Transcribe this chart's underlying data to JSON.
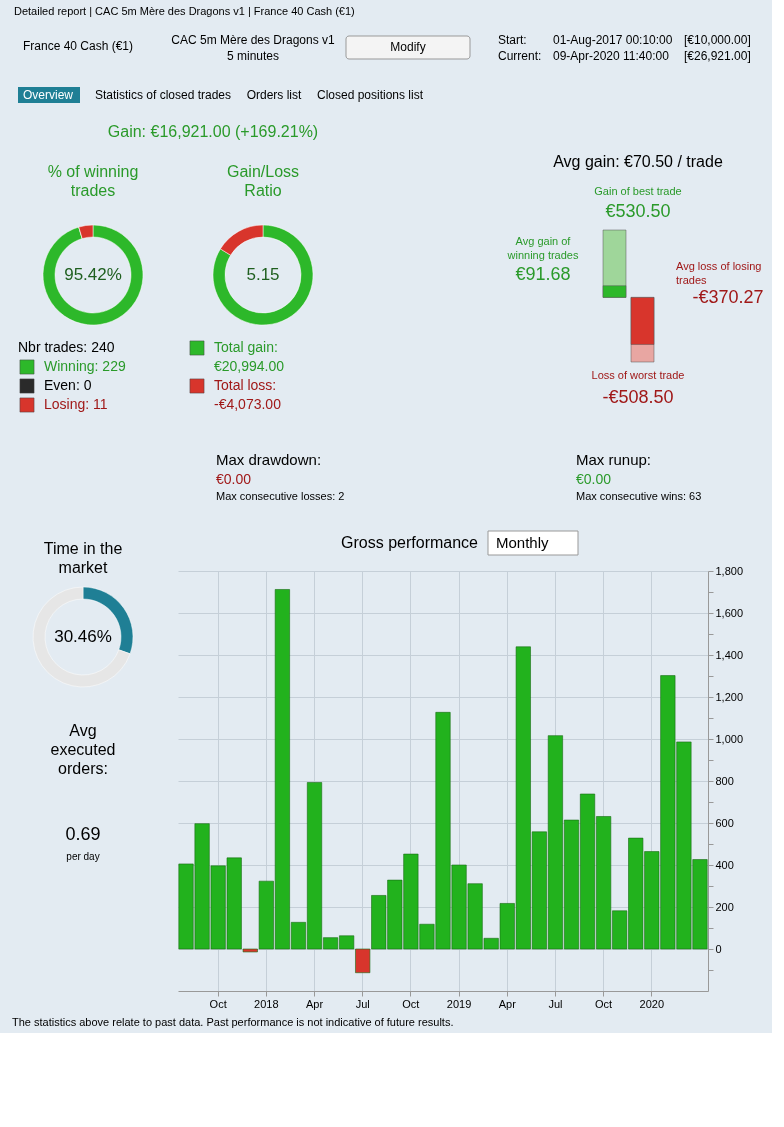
{
  "chart_data": [
    {
      "type": "other",
      "annotations": [
        "Detailed report | CAC 5m Mère des Dragons v1 | France 40 Cash (€1)",
        "France 40 Cash (€1)",
        "CAC 5m Mère des Dragons v1",
        "5 minutes",
        "Modify",
        "Start:",
        "01-Aug-2017 00:10:00",
        "[€10,000.00]",
        "Current:",
        "09-Apr-2020 11:40:00",
        "[€26,921.00]",
        "Overview",
        "Statistics of closed trades",
        "Orders list",
        "Closed positions list",
        "Gain: €16,921.00 (+169.21%)"
      ]
    },
    {
      "type": "donut",
      "title": "% of winning trades",
      "categories": [
        "Winning: 229",
        "Even: 0",
        "Losing: 11"
      ],
      "legend": "bottom",
      "values": [
        229,
        0,
        11
      ],
      "colors": [
        "#2db82a",
        "#2a2a2a",
        "#d8352c"
      ],
      "annotations": [
        "95.42%",
        "Nbr trades: 240"
      ]
    },
    {
      "type": "donut",
      "title": "Gain/Loss Ratio",
      "categories": [
        "Total gain: €20,994.00",
        "Total loss: -€4,073.00"
      ],
      "legend": "bottom",
      "values": [
        83.75,
        16.25
      ],
      "colors": [
        "#2db82a",
        "#d8352c"
      ],
      "annotations": [
        "5.15"
      ]
    },
    {
      "type": "other",
      "title": "Avg gain: €70.50 / trade",
      "categories": [
        "Gain of best trade",
        "Avg gain of winning trades",
        "Avg loss of losing trades",
        "Loss of worst trade"
      ],
      "values": [
        530.5,
        91.68,
        -370.27,
        -508.5
      ],
      "value_labels": [
        "€530.50",
        "€91.68",
        "-€370.27",
        "-€508.50"
      ]
    },
    {
      "type": "other",
      "annotations": [
        "Max drawdown:",
        "€0.00",
        "Max consecutive losses: 2",
        "Max runup:",
        "€0.00",
        "Max consecutive wins: 63"
      ]
    },
    {
      "type": "donut",
      "title": "Time in the market",
      "categories": [
        null,
        null
      ],
      "values": [
        30.46,
        69.54
      ],
      "colors": [
        "#1f7f95",
        "#e6e6e6"
      ],
      "annotations": [
        "30.46%"
      ]
    },
    {
      "type": "other",
      "title": "Avg executed orders:",
      "annotations": [
        "0.69",
        "per day"
      ]
    },
    {
      "type": "bar",
      "title": "Gross performance",
      "annotations": [
        "Monthly"
      ],
      "categories": [
        null,
        null,
        "Oct",
        null,
        null,
        "2018",
        null,
        null,
        "Apr",
        null,
        null,
        "Jul",
        null,
        null,
        "Oct",
        null,
        null,
        "2019",
        null,
        null,
        "Apr",
        null,
        null,
        "Jul",
        null,
        null,
        "Oct",
        null,
        null,
        "2020",
        null,
        null,
        null
      ],
      "values": [
        405,
        597,
        396,
        434,
        -14,
        323,
        1712,
        127,
        793,
        54,
        63,
        -113,
        255,
        328,
        452,
        118,
        1127,
        400,
        311,
        51,
        217,
        1439,
        558,
        1016,
        614,
        738,
        631,
        182,
        528,
        464,
        1302,
        986,
        426
      ],
      "colors": [
        "#22b21d",
        "#22b21d",
        "#22b21d",
        "#22b21d",
        "#d8352c",
        "#22b21d",
        "#22b21d",
        "#22b21d",
        "#22b21d",
        "#22b21d",
        "#22b21d",
        "#d8352c",
        "#22b21d",
        "#22b21d",
        "#22b21d",
        "#22b21d",
        "#22b21d",
        "#22b21d",
        "#22b21d",
        "#22b21d",
        "#22b21d",
        "#22b21d",
        "#22b21d",
        "#22b21d",
        "#22b21d",
        "#22b21d",
        "#22b21d",
        "#22b21d",
        "#22b21d",
        "#22b21d",
        "#22b21d",
        "#22b21d",
        "#22b21d"
      ],
      "ylim": [
        -200,
        1800
      ],
      "yticks": [
        {
          "value": -100,
          "label": null
        },
        0,
        {
          "value": 100,
          "label": null
        },
        200,
        {
          "value": 300,
          "label": null
        },
        400,
        {
          "value": 500,
          "label": null
        },
        600,
        {
          "value": 700,
          "label": null
        },
        800,
        {
          "value": 900,
          "label": null
        },
        {
          "value": 1000,
          "label": "1,000"
        },
        {
          "value": 1100,
          "label": null
        },
        {
          "value": 1200,
          "label": "1,200"
        },
        {
          "value": 1300,
          "label": null
        },
        {
          "value": 1400,
          "label": "1,400"
        },
        {
          "value": 1500,
          "label": null
        },
        {
          "value": 1600,
          "label": "1,600"
        },
        {
          "value": 1700,
          "label": null
        },
        {
          "value": 1800,
          "label": "1,800"
        }
      ],
      "grid": true
    },
    {
      "type": "other",
      "annotations": [
        "The statistics above relate to past data. Past performance is not indicative of future results."
      ]
    }
  ]
}
